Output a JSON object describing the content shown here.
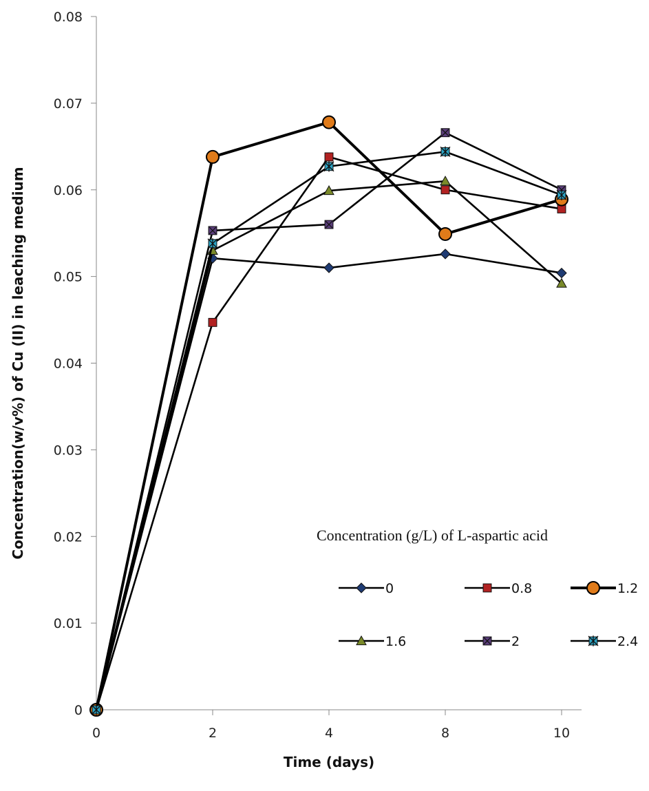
{
  "chart_data": {
    "type": "line",
    "categories": [
      "0",
      "2",
      "4",
      "8",
      "10"
    ],
    "xlabel": "Time (days)",
    "ylabel": "Concentration(w/v%) of Cu (II) in leaching medium",
    "ylim": [
      0,
      0.08
    ],
    "yticks": [
      "0",
      "0.01",
      "0.02",
      "0.03",
      "0.04",
      "0.05",
      "0.06",
      "0.07",
      "0.08"
    ],
    "grid": false,
    "legend_title": "Concentration (g/L) of L-aspartic acid",
    "legend_position": "lower-right",
    "series": [
      {
        "name": "0",
        "values": [
          0,
          0.0521,
          0.051,
          0.0526,
          0.0504
        ],
        "marker": "diamond",
        "fill": "#1f3b73"
      },
      {
        "name": "0.8",
        "values": [
          0,
          0.0447,
          0.0638,
          0.06,
          0.0578
        ],
        "marker": "square",
        "fill": "#b22222"
      },
      {
        "name": "1.2",
        "values": [
          0,
          0.0638,
          0.0678,
          0.0549,
          0.0589
        ],
        "marker": "circle",
        "fill": "#e07b1a"
      },
      {
        "name": "1.6",
        "values": [
          0,
          0.053,
          0.0599,
          0.061,
          0.0492
        ],
        "marker": "triangle",
        "fill": "#7a8a2a"
      },
      {
        "name": "2",
        "values": [
          0,
          0.0553,
          0.056,
          0.0666,
          0.06
        ],
        "marker": "xsquare",
        "fill": "#5a3d7a"
      },
      {
        "name": "2.4",
        "values": [
          0,
          0.0538,
          0.0627,
          0.0644,
          0.0594
        ],
        "marker": "star",
        "fill": "#2aa3c4"
      }
    ]
  }
}
